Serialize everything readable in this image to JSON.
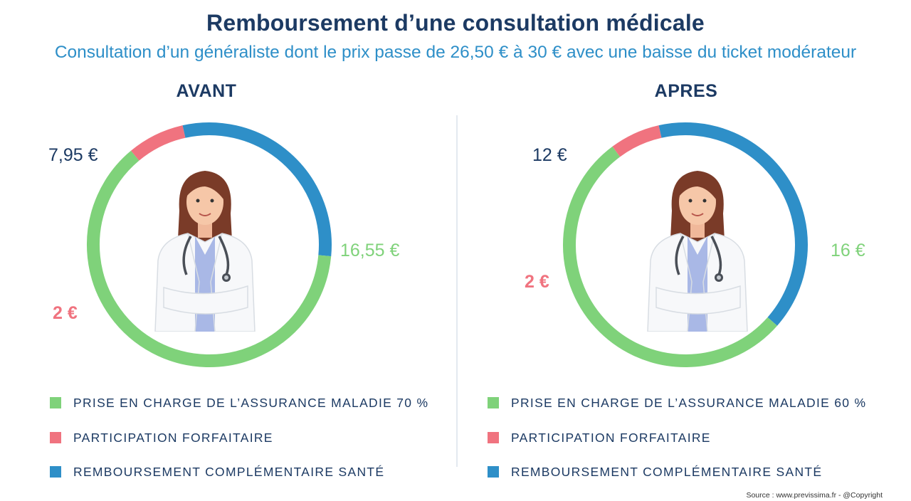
{
  "title": "Remboursement d’une consultation médicale",
  "subtitle": "Consultation d’un généraliste dont le prix passe de 26,50 € à 30 € avec une baisse du ticket modérateur",
  "colors": {
    "green": "#7fd27a",
    "red": "#f0737f",
    "blue": "#2e8fc8",
    "navy": "#1c3a63"
  },
  "chart_data": [
    {
      "type": "pie",
      "donut": true,
      "title": "AVANT",
      "categories": [
        "PRISE EN CHARGE DE L’ASSURANCE MALADIE 70 %",
        "PARTICIPATION FORFAITAIRE",
        "REMBOURSEMENT COMPLÉMENTAIRE SANTÉ"
      ],
      "values": [
        16.55,
        2,
        7.95
      ],
      "value_labels": [
        "16,55 €",
        "2 €",
        "7,95 €"
      ],
      "colors": [
        "#7fd27a",
        "#f0737f",
        "#2e8fc8"
      ],
      "legend_position": "bottom"
    },
    {
      "type": "pie",
      "donut": true,
      "title": "APRES",
      "categories": [
        "PRISE EN CHARGE DE L’ASSURANCE MALADIE 60 %",
        "PARTICIPATION FORFAITAIRE",
        "REMBOURSEMENT COMPLÉMENTAIRE SANTÉ"
      ],
      "values": [
        16,
        2,
        12
      ],
      "value_labels": [
        "16 €",
        "2 €",
        "12 €"
      ],
      "colors": [
        "#7fd27a",
        "#f0737f",
        "#2e8fc8"
      ],
      "legend_position": "bottom"
    }
  ],
  "source": "Source : www.previssima.fr - @Copyright"
}
